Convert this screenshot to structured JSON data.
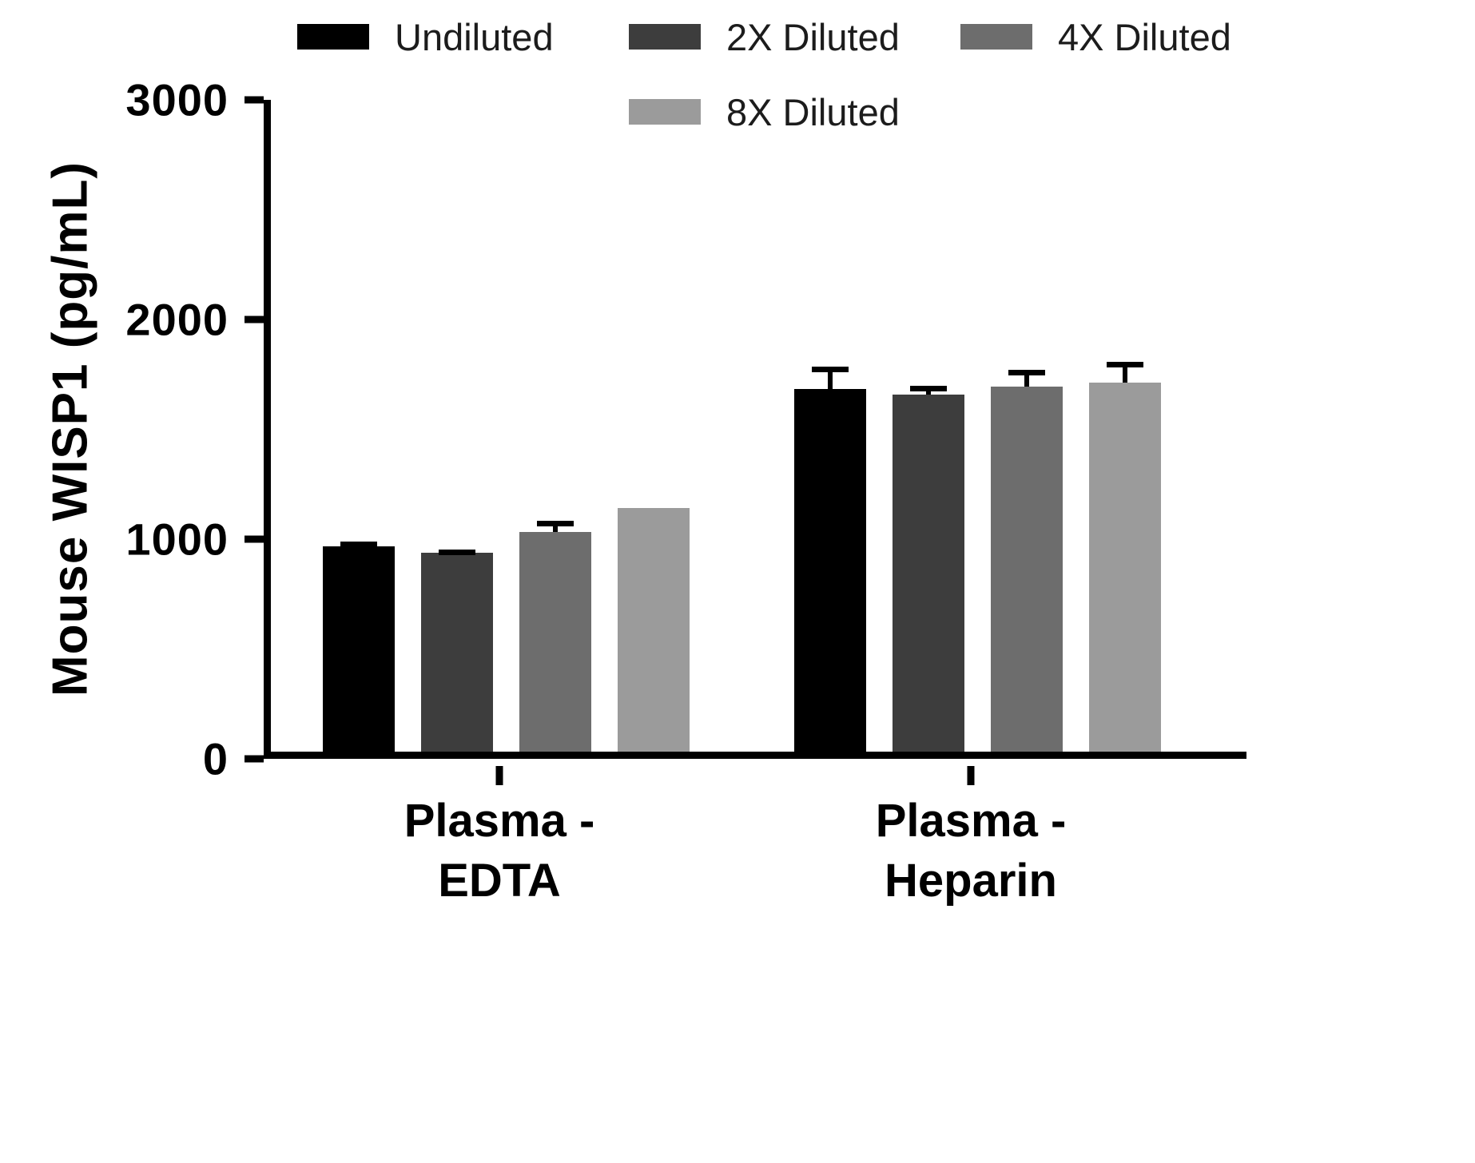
{
  "chart_data": {
    "type": "bar",
    "title": "",
    "xlabel": "",
    "ylabel": "Mouse WISP1 (pg/mL)",
    "ylim": [
      0,
      3000
    ],
    "yticks": [
      0,
      1000,
      2000,
      3000
    ],
    "legend_position": "top",
    "grid": false,
    "categories": [
      "Plasma -\nEDTA",
      "Plasma -\nHeparin"
    ],
    "series": [
      {
        "name": "Undiluted",
        "color": "#000000",
        "values": [
          935,
          1650
        ],
        "errors": [
          20,
          100
        ]
      },
      {
        "name": "2X Diluted",
        "color": "#3d3d3d",
        "values": [
          905,
          1625
        ],
        "errors": [
          15,
          40
        ]
      },
      {
        "name": "4X Diluted",
        "color": "#6d6d6d",
        "values": [
          1000,
          1660
        ],
        "errors": [
          50,
          75
        ]
      },
      {
        "name": "8X Diluted",
        "color": "#9b9b9b",
        "values": [
          1110,
          1680
        ],
        "errors": [
          0,
          95
        ]
      }
    ],
    "error_bar_color": "#000000",
    "axis_color": "#000000"
  }
}
